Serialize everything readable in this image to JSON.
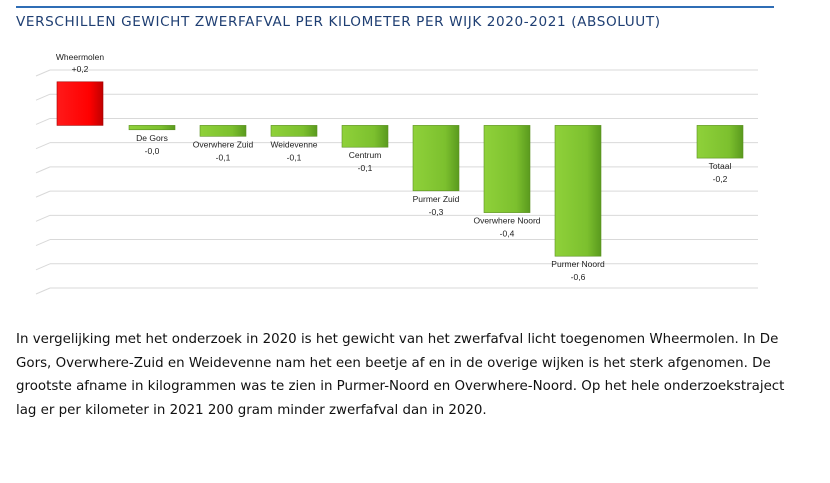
{
  "page": {
    "title": "VERSCHILLEN GEWICHT ZWERFAFVAL PER KILOMETER PER WIJK 2020-2021 (ABSOLUUT)",
    "paragraph": "In vergelijking met het onderzoek in 2020 is het gewicht van het zwerfafval licht toegenomen Wheermolen. In De Gors, Overwhere-Zuid en Weidevenne nam het een beetje af en in de overige wijken is het sterk afgenomen. De grootste afname in kilogrammen was te zien in Purmer-Noord en Overwhere-Noord. Op het hele onderzoekstraject lag er per kilometer in 2021 200 gram minder zwerfafval dan in 2020."
  },
  "chart_data": {
    "type": "bar",
    "title": "VERSCHILLEN GEWICHT ZWERFAFVAL PER KILOMETER PER WIJK 2020-2021 (ABSOLUUT)",
    "categories": [
      "Wheermolen",
      "De Gors",
      "Overwhere Zuid",
      "Weidevenne",
      "Centrum",
      "Purmer Zuid",
      "Overwhere Noord",
      "Purmer Noord",
      "Totaal"
    ],
    "values": [
      0.2,
      -0.02,
      -0.05,
      -0.05,
      -0.1,
      -0.3,
      -0.4,
      -0.6,
      -0.15
    ],
    "value_labels": [
      "+0,2",
      "-0,0",
      "-0,1",
      "-0,1",
      "-0,1",
      "-0,3",
      "-0,4",
      "-0,6",
      "-0,2"
    ],
    "colors": {
      "positive": "#ff0000",
      "negative": "#7cc02e"
    },
    "ylim": [
      -0.7,
      0.3
    ],
    "grid": true,
    "xlabel": "",
    "ylabel": ""
  }
}
